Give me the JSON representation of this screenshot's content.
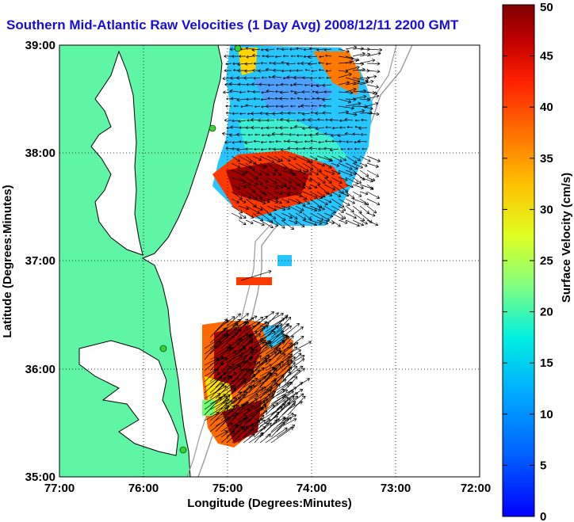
{
  "title": "Southern Mid-Atlantic Raw Velocities (1 Day Avg) 2008/12/11 2200 GMT",
  "map": {
    "x_axis_label": "Longitude (Degrees:Minutes)",
    "y_axis_label": "Latitude (Degrees:Minutes)",
    "lon_ticks": [
      "77:00",
      "76:00",
      "75:00",
      "74:00",
      "73:00",
      "72:00"
    ],
    "lat_ticks": [
      "39:00",
      "38:00",
      "37:00",
      "36:00",
      "35:00"
    ],
    "lon_range": [
      -77,
      -72
    ],
    "lat_range": [
      35,
      39
    ],
    "grid": "dotted",
    "land_color": "#5ef5a4",
    "coast_color": "#000000",
    "bathymetry_color": "#9a9a9a"
  },
  "colorbar": {
    "label": "Surface Velocity (cm/s)",
    "ticks": [
      "50",
      "45",
      "40",
      "35",
      "30",
      "25",
      "20",
      "15",
      "10",
      "5",
      "0"
    ],
    "range": [
      0,
      50
    ],
    "colormap": "jet"
  },
  "sites": {
    "color": "#2fd72f",
    "count": 4
  }
}
